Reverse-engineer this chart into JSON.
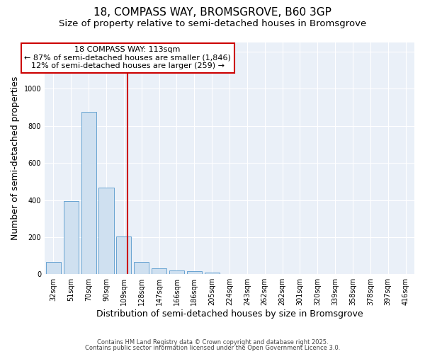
{
  "title1": "18, COMPASS WAY, BROMSGROVE, B60 3GP",
  "title2": "Size of property relative to semi-detached houses in Bromsgrove",
  "xlabel": "Distribution of semi-detached houses by size in Bromsgrove",
  "ylabel": "Number of semi-detached properties",
  "bin_labels": [
    "32sqm",
    "51sqm",
    "70sqm",
    "90sqm",
    "109sqm",
    "128sqm",
    "147sqm",
    "166sqm",
    "186sqm",
    "205sqm",
    "224sqm",
    "243sqm",
    "262sqm",
    "282sqm",
    "301sqm",
    "320sqm",
    "339sqm",
    "358sqm",
    "378sqm",
    "397sqm",
    "416sqm"
  ],
  "bar_heights": [
    65,
    395,
    875,
    465,
    205,
    65,
    32,
    20,
    15,
    10,
    0,
    0,
    0,
    0,
    0,
    0,
    0,
    0,
    0,
    0,
    0
  ],
  "bar_color": "#cfe0f0",
  "bar_edge_color": "#5599cc",
  "vline_x": 4.0,
  "vline_color": "#cc0000",
  "annotation_title": "18 COMPASS WAY: 113sqm",
  "annotation_line1": "← 87% of semi-detached houses are smaller (1,846)",
  "annotation_line2": "12% of semi-detached houses are larger (259) →",
  "annotation_box_color": "#ffffff",
  "annotation_box_edge": "#cc0000",
  "ylim": [
    0,
    1250
  ],
  "yticks": [
    0,
    200,
    400,
    600,
    800,
    1000,
    1200
  ],
  "plot_bg_color": "#eaf0f8",
  "fig_bg_color": "#ffffff",
  "footer1": "Contains HM Land Registry data © Crown copyright and database right 2025.",
  "footer2": "Contains public sector information licensed under the Open Government Licence 3.0.",
  "title1_fontsize": 11,
  "title2_fontsize": 9.5,
  "axis_label_fontsize": 9,
  "tick_fontsize": 7,
  "footer_fontsize": 6,
  "ann_fontsize": 8
}
